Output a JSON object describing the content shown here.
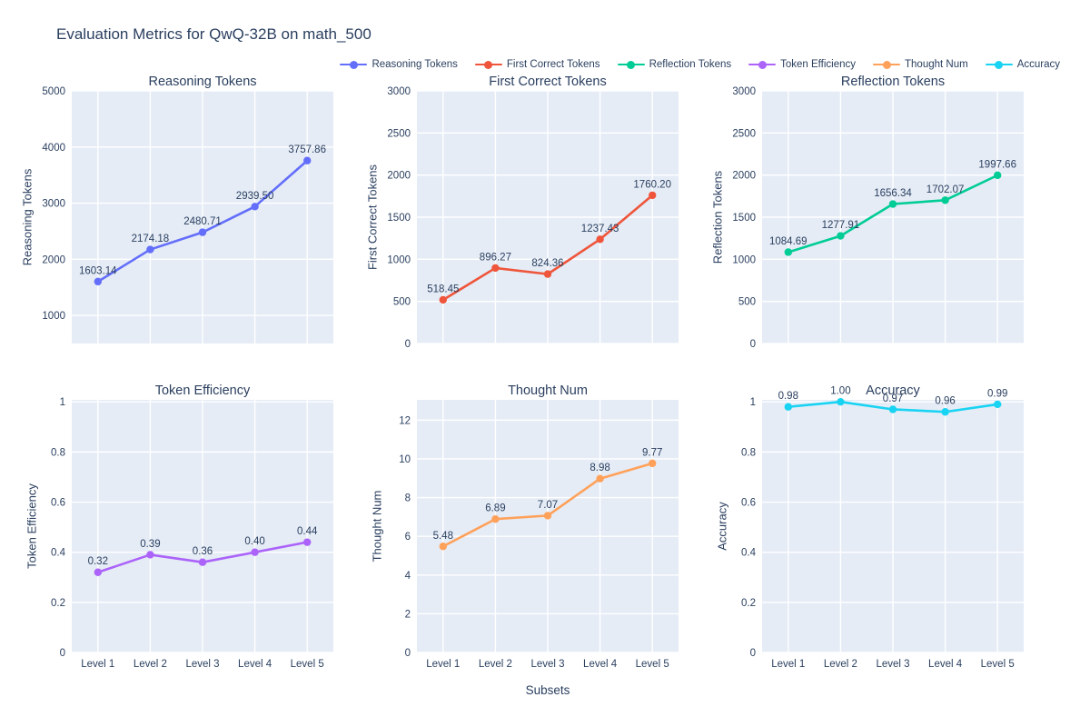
{
  "page_title": "Evaluation Metrics for QwQ-32B on math_500",
  "colors": {
    "text": "#2a3f5f",
    "plot_bg": "#E5ECF6",
    "grid": "#FFFFFF",
    "page_bg": "#FFFFFF"
  },
  "chart_data": {
    "type": "line",
    "title": "Evaluation Metrics for QwQ-32B on math_500",
    "categories": [
      "Level 1",
      "Level 2",
      "Level 3",
      "Level 4",
      "Level 5"
    ],
    "xlabel": "Subsets",
    "legend_position": "top-right",
    "grid": true,
    "charts": [
      {
        "name": "Reasoning Tokens",
        "title": "Reasoning Tokens",
        "ylabel": "Reasoning Tokens",
        "color": "#636EFA",
        "values": [
          1603.14,
          2174.18,
          2480.71,
          2939.5,
          3757.86
        ],
        "labels": [
          "1603.14",
          "2174.18",
          "2480.71",
          "2939.50",
          "3757.86"
        ],
        "ymin": 500,
        "ymax": 5000,
        "yticks": [
          {
            "v": 1000,
            "t": "1000"
          },
          {
            "v": 2000,
            "t": "2000"
          },
          {
            "v": 3000,
            "t": "3000"
          },
          {
            "v": 4000,
            "t": "4000"
          },
          {
            "v": 5000,
            "t": "5000"
          }
        ],
        "show_xticks": false
      },
      {
        "name": "First Correct Tokens",
        "title": "First Correct Tokens",
        "ylabel": "First Correct Tokens",
        "color": "#EF553B",
        "values": [
          518.45,
          896.27,
          824.36,
          1237.43,
          1760.2
        ],
        "labels": [
          "518.45",
          "896.27",
          "824.36",
          "1237.43",
          "1760.20"
        ],
        "ymin": 0,
        "ymax": 3000,
        "yticks": [
          {
            "v": 0,
            "t": "0"
          },
          {
            "v": 500,
            "t": "500"
          },
          {
            "v": 1000,
            "t": "1000"
          },
          {
            "v": 1500,
            "t": "1500"
          },
          {
            "v": 2000,
            "t": "2000"
          },
          {
            "v": 2500,
            "t": "2500"
          },
          {
            "v": 3000,
            "t": "3000"
          }
        ],
        "show_xticks": false
      },
      {
        "name": "Reflection Tokens",
        "title": "Reflection Tokens",
        "ylabel": "Reflection Tokens",
        "color": "#00CC96",
        "values": [
          1084.69,
          1277.91,
          1656.34,
          1702.07,
          1997.66
        ],
        "labels": [
          "1084.69",
          "1277.91",
          "1656.34",
          "1702.07",
          "1997.66"
        ],
        "ymin": 0,
        "ymax": 3000,
        "yticks": [
          {
            "v": 0,
            "t": "0"
          },
          {
            "v": 500,
            "t": "500"
          },
          {
            "v": 1000,
            "t": "1000"
          },
          {
            "v": 1500,
            "t": "1500"
          },
          {
            "v": 2000,
            "t": "2000"
          },
          {
            "v": 2500,
            "t": "2500"
          },
          {
            "v": 3000,
            "t": "3000"
          }
        ],
        "show_xticks": false
      },
      {
        "name": "Token Efficiency",
        "title": "Token Efficiency",
        "ylabel": "Token Efficiency",
        "color": "#AB63FA",
        "values": [
          0.32,
          0.39,
          0.36,
          0.4,
          0.44
        ],
        "labels": [
          "0.32",
          "0.39",
          "0.36",
          "0.40",
          "0.44"
        ],
        "ymin": 0,
        "ymax": 1.008,
        "yticks": [
          {
            "v": 0,
            "t": "0"
          },
          {
            "v": 0.2,
            "t": "0.2"
          },
          {
            "v": 0.4,
            "t": "0.4"
          },
          {
            "v": 0.6,
            "t": "0.6"
          },
          {
            "v": 0.8,
            "t": "0.8"
          },
          {
            "v": 1,
            "t": "1"
          }
        ],
        "show_xticks": true
      },
      {
        "name": "Thought Num",
        "title": "Thought Num",
        "ylabel": "Thought Num",
        "color": "#FFA15A",
        "values": [
          5.48,
          6.89,
          7.07,
          8.98,
          9.77
        ],
        "labels": [
          "5.48",
          "6.89",
          "7.07",
          "8.98",
          "9.77"
        ],
        "ymin": 0,
        "ymax": 13.05,
        "yticks": [
          {
            "v": 0,
            "t": "0"
          },
          {
            "v": 2,
            "t": "2"
          },
          {
            "v": 4,
            "t": "4"
          },
          {
            "v": 6,
            "t": "6"
          },
          {
            "v": 8,
            "t": "8"
          },
          {
            "v": 10,
            "t": "10"
          },
          {
            "v": 12,
            "t": "12"
          }
        ],
        "show_xticks": true
      },
      {
        "name": "Accuracy",
        "title": "Accuracy",
        "ylabel": "Accuracy",
        "color": "#19D3F3",
        "values": [
          0.98,
          1.0,
          0.97,
          0.96,
          0.99
        ],
        "labels": [
          "0.98",
          "1.00",
          "0.97",
          "0.96",
          "0.99"
        ],
        "ymin": 0,
        "ymax": 1.008,
        "yticks": [
          {
            "v": 0,
            "t": "0"
          },
          {
            "v": 0.2,
            "t": "0.2"
          },
          {
            "v": 0.4,
            "t": "0.4"
          },
          {
            "v": 0.6,
            "t": "0.6"
          },
          {
            "v": 0.8,
            "t": "0.8"
          },
          {
            "v": 1,
            "t": "1"
          }
        ],
        "show_xticks": true
      }
    ]
  }
}
